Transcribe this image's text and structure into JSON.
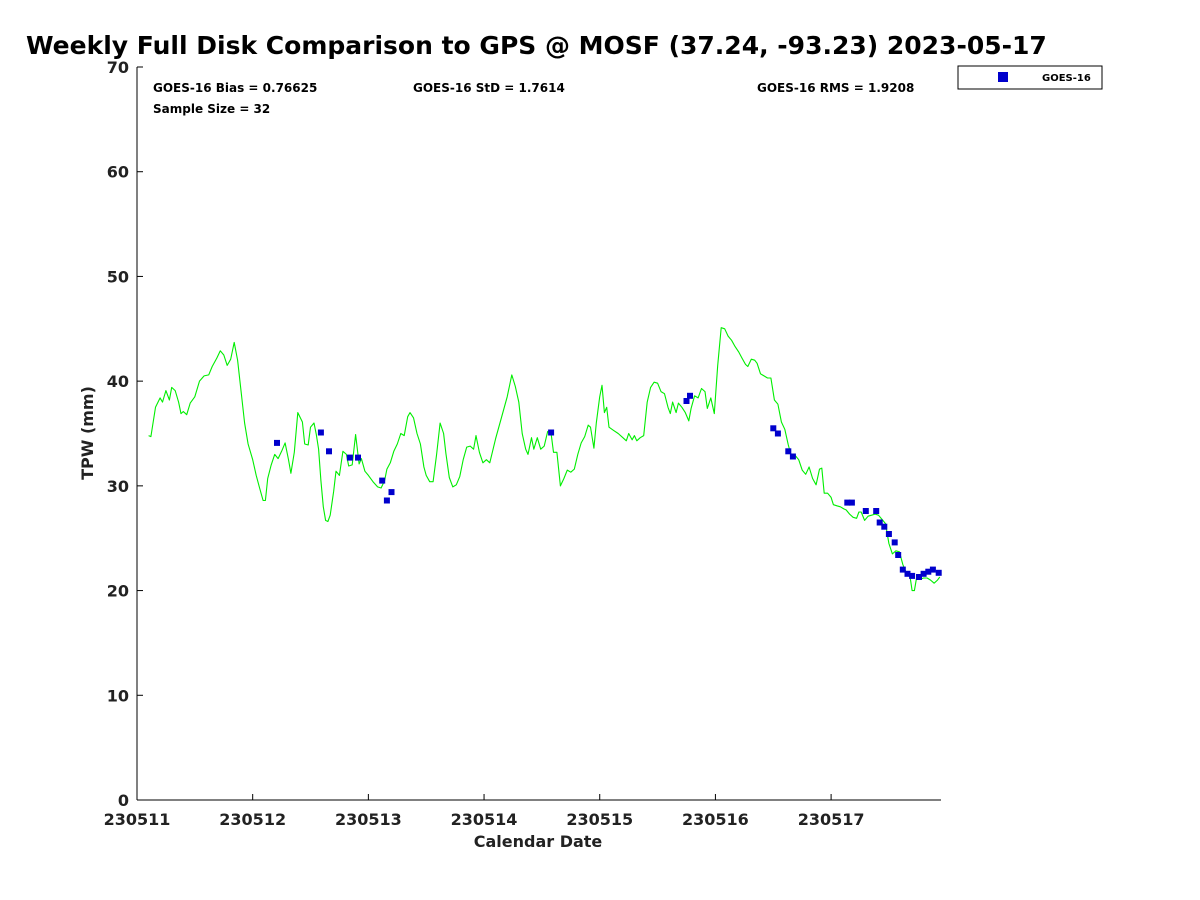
{
  "colors": {
    "gps_line": "#00ee00",
    "goes_marker": "#0000cc",
    "axis": "#000000",
    "text": "#222222"
  },
  "chart_data": {
    "type": "scatter",
    "title": "Weekly Full Disk Comparison to GPS @ MOSF (37.24, -93.23) 2023-05-17",
    "xlabel": "Calendar Date",
    "ylabel": "TPW (mm)",
    "xlim": [
      0,
      6.95
    ],
    "ylim": [
      0,
      70
    ],
    "x_unit_note": "days since 230511 00Z",
    "yticks": [
      0,
      10,
      20,
      30,
      40,
      50,
      60,
      70
    ],
    "xticks": [
      {
        "x": 0,
        "label": "230511"
      },
      {
        "x": 1,
        "label": "230512"
      },
      {
        "x": 2,
        "label": "230513"
      },
      {
        "x": 3,
        "label": "230514"
      },
      {
        "x": 4,
        "label": "230515"
      },
      {
        "x": 5,
        "label": "230516"
      },
      {
        "x": 6,
        "label": "230517"
      }
    ],
    "stats": {
      "bias": "GOES-16 Bias = 0.76625",
      "std": "GOES-16 StD = 1.7614",
      "rms": "GOES-16 RMS = 1.9208",
      "sample": "Sample Size = 32"
    },
    "legend": {
      "label": "GOES-16",
      "placement": "top-right outside"
    },
    "series": [
      {
        "name": "GPS",
        "kind": "line",
        "points": [
          [
            0.1,
            34.8
          ],
          [
            0.12,
            34.7
          ],
          [
            0.16,
            37.5
          ],
          [
            0.2,
            38.4
          ],
          [
            0.22,
            38.0
          ],
          [
            0.25,
            39.1
          ],
          [
            0.28,
            38.2
          ],
          [
            0.3,
            39.4
          ],
          [
            0.33,
            39.1
          ],
          [
            0.36,
            38.0
          ],
          [
            0.38,
            36.9
          ],
          [
            0.4,
            37.1
          ],
          [
            0.43,
            36.8
          ],
          [
            0.46,
            37.9
          ],
          [
            0.5,
            38.5
          ],
          [
            0.54,
            40.0
          ],
          [
            0.58,
            40.5
          ],
          [
            0.62,
            40.6
          ],
          [
            0.65,
            41.4
          ],
          [
            0.69,
            42.2
          ],
          [
            0.72,
            42.9
          ],
          [
            0.75,
            42.5
          ],
          [
            0.78,
            41.5
          ],
          [
            0.81,
            42.1
          ],
          [
            0.84,
            43.7
          ],
          [
            0.87,
            42.0
          ],
          [
            0.9,
            39.0
          ],
          [
            0.93,
            36.0
          ],
          [
            0.96,
            34.0
          ],
          [
            1.0,
            32.5
          ],
          [
            1.03,
            31.0
          ],
          [
            1.06,
            29.8
          ],
          [
            1.09,
            28.6
          ],
          [
            1.11,
            28.6
          ],
          [
            1.13,
            30.7
          ],
          [
            1.16,
            32.0
          ],
          [
            1.19,
            33.0
          ],
          [
            1.22,
            32.6
          ],
          [
            1.25,
            33.3
          ],
          [
            1.28,
            34.1
          ],
          [
            1.31,
            32.5
          ],
          [
            1.33,
            31.2
          ],
          [
            1.36,
            33.2
          ],
          [
            1.39,
            37.0
          ],
          [
            1.43,
            36.1
          ],
          [
            1.45,
            34.0
          ],
          [
            1.48,
            33.9
          ],
          [
            1.5,
            35.6
          ],
          [
            1.53,
            36.0
          ],
          [
            1.55,
            34.9
          ],
          [
            1.57,
            33.5
          ],
          [
            1.59,
            30.5
          ],
          [
            1.61,
            28.0
          ],
          [
            1.63,
            26.7
          ],
          [
            1.65,
            26.6
          ],
          [
            1.67,
            27.2
          ],
          [
            1.7,
            29.5
          ],
          [
            1.72,
            31.4
          ],
          [
            1.75,
            31.0
          ],
          [
            1.78,
            33.3
          ],
          [
            1.81,
            33.0
          ],
          [
            1.83,
            31.9
          ],
          [
            1.86,
            32.0
          ],
          [
            1.89,
            34.9
          ],
          [
            1.92,
            32.1
          ],
          [
            1.94,
            32.6
          ],
          [
            1.97,
            31.4
          ],
          [
            2.0,
            31.0
          ],
          [
            2.04,
            30.4
          ],
          [
            2.08,
            29.9
          ],
          [
            2.11,
            29.8
          ],
          [
            2.14,
            30.5
          ],
          [
            2.16,
            31.6
          ],
          [
            2.19,
            32.2
          ],
          [
            2.22,
            33.3
          ],
          [
            2.25,
            34.0
          ],
          [
            2.28,
            35.0
          ],
          [
            2.31,
            34.8
          ],
          [
            2.34,
            36.6
          ],
          [
            2.36,
            37.0
          ],
          [
            2.39,
            36.5
          ],
          [
            2.42,
            35.0
          ],
          [
            2.45,
            34.0
          ],
          [
            2.48,
            31.8
          ],
          [
            2.5,
            31.0
          ],
          [
            2.53,
            30.4
          ],
          [
            2.56,
            30.4
          ],
          [
            2.59,
            33.0
          ],
          [
            2.62,
            36.0
          ],
          [
            2.65,
            35.0
          ],
          [
            2.67,
            33.1
          ],
          [
            2.7,
            30.8
          ],
          [
            2.73,
            29.9
          ],
          [
            2.76,
            30.1
          ],
          [
            2.79,
            30.9
          ],
          [
            2.82,
            32.5
          ],
          [
            2.85,
            33.7
          ],
          [
            2.88,
            33.8
          ],
          [
            2.91,
            33.5
          ],
          [
            2.93,
            34.8
          ],
          [
            2.96,
            33.2
          ],
          [
            2.99,
            32.2
          ],
          [
            3.02,
            32.5
          ],
          [
            3.05,
            32.2
          ],
          [
            3.1,
            34.5
          ],
          [
            3.15,
            36.5
          ],
          [
            3.2,
            38.5
          ],
          [
            3.24,
            40.6
          ],
          [
            3.27,
            39.5
          ],
          [
            3.3,
            38.0
          ],
          [
            3.33,
            35.0
          ],
          [
            3.36,
            33.5
          ],
          [
            3.38,
            33.0
          ],
          [
            3.41,
            34.6
          ],
          [
            3.43,
            33.5
          ],
          [
            3.46,
            34.6
          ],
          [
            3.49,
            33.5
          ],
          [
            3.52,
            33.8
          ],
          [
            3.55,
            35.2
          ],
          [
            3.58,
            35.0
          ],
          [
            3.6,
            33.2
          ],
          [
            3.63,
            33.2
          ],
          [
            3.66,
            30.0
          ],
          [
            3.69,
            30.7
          ],
          [
            3.72,
            31.5
          ],
          [
            3.75,
            31.3
          ],
          [
            3.78,
            31.6
          ],
          [
            3.81,
            33.0
          ],
          [
            3.84,
            34.1
          ],
          [
            3.87,
            34.7
          ],
          [
            3.9,
            35.8
          ],
          [
            3.92,
            35.6
          ],
          [
            3.95,
            33.6
          ],
          [
            3.97,
            36.0
          ],
          [
            4.0,
            38.5
          ],
          [
            4.02,
            39.6
          ],
          [
            4.04,
            37.0
          ],
          [
            4.06,
            37.5
          ],
          [
            4.08,
            35.6
          ],
          [
            4.12,
            35.3
          ],
          [
            4.16,
            35.0
          ],
          [
            4.2,
            34.6
          ],
          [
            4.23,
            34.3
          ],
          [
            4.25,
            35.0
          ],
          [
            4.28,
            34.4
          ],
          [
            4.3,
            34.8
          ],
          [
            4.32,
            34.3
          ],
          [
            4.35,
            34.6
          ],
          [
            4.38,
            34.8
          ],
          [
            4.41,
            38.0
          ],
          [
            4.44,
            39.4
          ],
          [
            4.47,
            39.9
          ],
          [
            4.5,
            39.8
          ],
          [
            4.53,
            39.0
          ],
          [
            4.56,
            38.8
          ],
          [
            4.59,
            37.5
          ],
          [
            4.61,
            36.9
          ],
          [
            4.63,
            38.0
          ],
          [
            4.66,
            37.0
          ],
          [
            4.68,
            37.9
          ],
          [
            4.71,
            37.5
          ],
          [
            4.74,
            37.0
          ],
          [
            4.77,
            36.2
          ],
          [
            4.79,
            37.4
          ],
          [
            4.82,
            38.6
          ],
          [
            4.85,
            38.4
          ],
          [
            4.88,
            39.3
          ],
          [
            4.91,
            39.0
          ],
          [
            4.93,
            37.4
          ],
          [
            4.96,
            38.4
          ],
          [
            4.99,
            36.9
          ],
          [
            5.02,
            41.5
          ],
          [
            5.05,
            45.1
          ],
          [
            5.08,
            45.0
          ],
          [
            5.11,
            44.3
          ],
          [
            5.14,
            43.9
          ],
          [
            5.17,
            43.3
          ],
          [
            5.2,
            42.8
          ],
          [
            5.23,
            42.2
          ],
          [
            5.26,
            41.6
          ],
          [
            5.28,
            41.4
          ],
          [
            5.31,
            42.1
          ],
          [
            5.34,
            42.0
          ],
          [
            5.36,
            41.7
          ],
          [
            5.39,
            40.7
          ],
          [
            5.42,
            40.5
          ],
          [
            5.45,
            40.3
          ],
          [
            5.48,
            40.3
          ],
          [
            5.51,
            38.2
          ],
          [
            5.54,
            37.8
          ],
          [
            5.57,
            36.1
          ],
          [
            5.6,
            35.4
          ],
          [
            5.63,
            33.9
          ],
          [
            5.66,
            32.7
          ],
          [
            5.69,
            32.9
          ],
          [
            5.72,
            32.5
          ],
          [
            5.75,
            31.5
          ],
          [
            5.78,
            31.1
          ],
          [
            5.81,
            31.8
          ],
          [
            5.84,
            30.7
          ],
          [
            5.87,
            30.1
          ],
          [
            5.9,
            31.6
          ],
          [
            5.92,
            31.7
          ],
          [
            5.94,
            29.3
          ],
          [
            5.97,
            29.3
          ],
          [
            6.0,
            28.9
          ],
          [
            6.02,
            28.2
          ],
          [
            6.05,
            28.1
          ],
          [
            6.08,
            28.0
          ],
          [
            6.11,
            27.8
          ],
          [
            6.13,
            27.7
          ],
          [
            6.16,
            27.3
          ],
          [
            6.19,
            27.0
          ],
          [
            6.22,
            26.9
          ],
          [
            6.24,
            27.5
          ],
          [
            6.26,
            27.5
          ],
          [
            6.29,
            26.7
          ],
          [
            6.32,
            27.1
          ],
          [
            6.35,
            27.2
          ],
          [
            6.38,
            27.3
          ],
          [
            6.41,
            27.2
          ],
          [
            6.44,
            26.8
          ],
          [
            6.47,
            26.4
          ],
          [
            6.5,
            24.5
          ],
          [
            6.53,
            23.5
          ],
          [
            6.56,
            23.8
          ],
          [
            6.59,
            23.7
          ],
          [
            6.62,
            22.5
          ],
          [
            6.65,
            21.7
          ],
          [
            6.68,
            21.5
          ],
          [
            6.7,
            20.0
          ],
          [
            6.72,
            20.0
          ],
          [
            6.74,
            21.3
          ],
          [
            6.77,
            21.1
          ],
          [
            6.8,
            21.2
          ],
          [
            6.83,
            21.2
          ],
          [
            6.86,
            21.0
          ],
          [
            6.89,
            20.7
          ],
          [
            6.92,
            21.0
          ],
          [
            6.94,
            21.3
          ]
        ]
      },
      {
        "name": "GOES-16",
        "kind": "marker",
        "points": [
          [
            1.21,
            34.1
          ],
          [
            1.59,
            35.1
          ],
          [
            1.66,
            33.3
          ],
          [
            1.84,
            32.7
          ],
          [
            1.91,
            32.7
          ],
          [
            2.12,
            30.5
          ],
          [
            2.16,
            28.6
          ],
          [
            2.2,
            29.4
          ],
          [
            3.58,
            35.1
          ],
          [
            4.75,
            38.1
          ],
          [
            4.78,
            38.6
          ],
          [
            5.5,
            35.5
          ],
          [
            5.54,
            35.0
          ],
          [
            5.63,
            33.3
          ],
          [
            5.67,
            32.8
          ],
          [
            6.14,
            28.4
          ],
          [
            6.18,
            28.4
          ],
          [
            6.3,
            27.6
          ],
          [
            6.39,
            27.6
          ],
          [
            6.42,
            26.5
          ],
          [
            6.46,
            26.1
          ],
          [
            6.5,
            25.4
          ],
          [
            6.55,
            24.6
          ],
          [
            6.58,
            23.4
          ],
          [
            6.62,
            22.0
          ],
          [
            6.66,
            21.6
          ],
          [
            6.7,
            21.4
          ],
          [
            6.76,
            21.3
          ],
          [
            6.8,
            21.6
          ],
          [
            6.84,
            21.8
          ],
          [
            6.88,
            22.0
          ],
          [
            6.93,
            21.7
          ]
        ]
      }
    ]
  }
}
